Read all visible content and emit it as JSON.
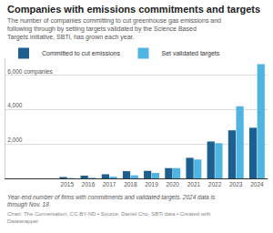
{
  "chart_data": {
    "type": "bar",
    "title": "Companies with emissions commitments and targets",
    "subtitle": "The number of companies committing to cut greenhouse gas emissions and following through by setting targets validated by the Science Based Targets initiative, SBTi, has grown each year.",
    "categories": [
      "2015",
      "2016",
      "2017",
      "2018",
      "2019",
      "2020",
      "2021",
      "2022",
      "2023",
      "2024"
    ],
    "series": [
      {
        "name": "Committed to cut emissions",
        "color": "#1d5f8e",
        "values": [
          80,
          160,
          240,
          420,
          440,
          600,
          1200,
          2150,
          2800,
          2950
        ]
      },
      {
        "name": "Set validated targets",
        "color": "#50b4e3",
        "values": [
          20,
          40,
          100,
          180,
          320,
          600,
          1100,
          2050,
          4200,
          6650
        ]
      }
    ],
    "ylim": [
      0,
      7000
    ],
    "yticks": [
      {
        "value": 2000,
        "label": "2,000"
      },
      {
        "value": 4000,
        "label": "4,000"
      },
      {
        "value": 6000,
        "label": "6,000 companies"
      }
    ],
    "grid": true,
    "legend": "top-left",
    "annotations": [
      "Year-end number of firms with commitments and validated targets. 2024 data is through Nov. 18",
      "Chart: The Conversation, CC-BY-ND • Source: Daniel Cho, SBTi data • Created with Datawrapper"
    ]
  }
}
